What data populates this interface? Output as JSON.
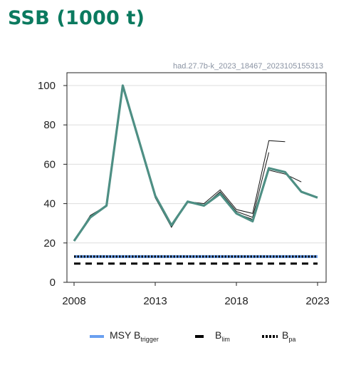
{
  "title": "SSB (1000 t)",
  "code": "had.27.7b-k_2023_18467_2023105155313",
  "colors": {
    "title": "#0b7a5f",
    "main_series": "#4e8f84",
    "retro": "#111111",
    "msy_btrigger": "#6aa0f0",
    "blim": "#000000",
    "bpa": "#000000",
    "axis": "#222222",
    "grid": "#dddddd"
  },
  "chart_data": {
    "type": "line",
    "xlim": [
      2008,
      2023
    ],
    "ylim": [
      0,
      100
    ],
    "x_ticks": [
      "2008",
      "2013",
      "2018",
      "2023"
    ],
    "y_ticks": [
      "0",
      "20",
      "40",
      "60",
      "80",
      "100"
    ],
    "grid": "horizontal",
    "series": [
      {
        "x": [
          2008,
          2009,
          2010,
          2011,
          2012,
          2013,
          2014,
          2015,
          2016,
          2017,
          2018,
          2019,
          2020,
          2021,
          2022,
          2023
        ],
        "values": [
          21,
          33,
          39,
          100,
          72,
          44,
          29,
          41,
          39,
          45,
          35,
          31,
          58,
          56,
          46,
          43
        ]
      },
      {
        "x": [
          2008,
          2009,
          2010,
          2011,
          2012,
          2013,
          2014,
          2015,
          2016,
          2017,
          2018,
          2019,
          2020,
          2021
        ],
        "values": [
          21,
          34,
          39,
          99,
          71,
          43,
          28,
          41,
          40,
          47,
          37,
          35,
          72,
          71.5
        ]
      },
      {
        "x": [
          2008,
          2009,
          2010,
          2011,
          2012,
          2013,
          2014,
          2015,
          2016,
          2017,
          2018,
          2019,
          2020
        ],
        "values": [
          21,
          33,
          39,
          99,
          71,
          43,
          28,
          41,
          39,
          46,
          36,
          33,
          66
        ]
      },
      {
        "x": [
          2008,
          2009,
          2010,
          2011,
          2012,
          2013,
          2014,
          2015,
          2016,
          2017,
          2018,
          2019,
          2020,
          2021,
          2022
        ],
        "values": [
          21,
          33,
          39,
          100,
          72,
          44,
          29,
          41,
          39,
          45,
          35,
          32,
          57,
          55,
          51
        ]
      }
    ],
    "reference_lines": [
      {
        "name": "MSY Btrigger",
        "value": 13.1
      },
      {
        "name": "Blim",
        "value": 9.5
      },
      {
        "name": "Bpa",
        "value": 13.1
      }
    ]
  },
  "legend": {
    "msy_label": "MSY B",
    "msy_sub": "trigger",
    "blim_label": "B",
    "blim_sub": "lim",
    "bpa_label": "B",
    "bpa_sub": "pa"
  }
}
